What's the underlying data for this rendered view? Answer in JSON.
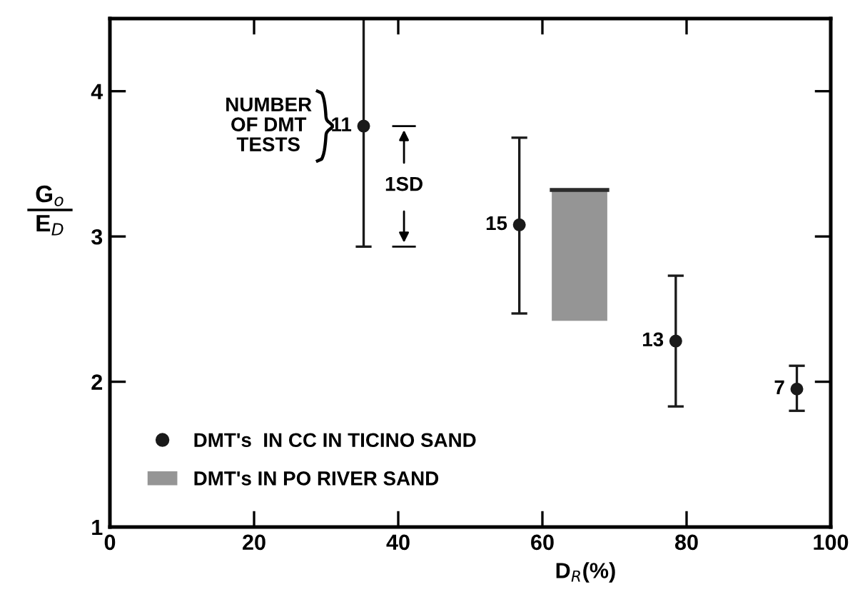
{
  "chart_data": {
    "type": "scatter",
    "xlabel": "D$_{R}$(%)",
    "ylabel": "G$_{o}$\nE$_{D}$",
    "xlim": [
      0,
      100
    ],
    "ylim": [
      1,
      4.5
    ],
    "xticks": [
      0,
      20,
      40,
      60,
      80,
      100
    ],
    "yticks": [
      1,
      2,
      3,
      4
    ],
    "grid": false,
    "legend": "bottom left",
    "series": [
      {
        "name": "DMT's  IN CC IN TICINO SAND",
        "marker": "circle",
        "color": "#1a1a1a",
        "x": [
          35.2,
          56.8,
          78.5,
          95.3
        ],
        "values": [
          3.76,
          3.08,
          2.28,
          1.95
        ],
        "errors": [
          [
            2.93,
            4.5
          ],
          [
            2.47,
            3.68
          ],
          [
            1.83,
            2.73
          ],
          [
            1.8,
            2.11
          ]
        ]
      },
      {
        "type": "line",
        "name": "DMT's IN PO RIVER SAND",
        "color": "#2b2b2b",
        "x": [
          61.3,
          69.0
        ],
        "values": [
          3.32,
          3.32
        ],
        "lower": [
          2.42,
          2.42
        ],
        "upper": [
          3.32,
          3.32
        ]
      }
    ],
    "annotations": [
      {
        "text": "11",
        "x": 35.2,
        "y": 3.76
      },
      {
        "text": "15",
        "x": 56.8,
        "y": 3.08
      },
      {
        "text": "13",
        "x": 78.5,
        "y": 2.28
      },
      {
        "text": "7",
        "x": 95.3,
        "y": 1.95
      },
      "NUMBER\nOF DMT\nTESTS",
      "1SD"
    ]
  }
}
